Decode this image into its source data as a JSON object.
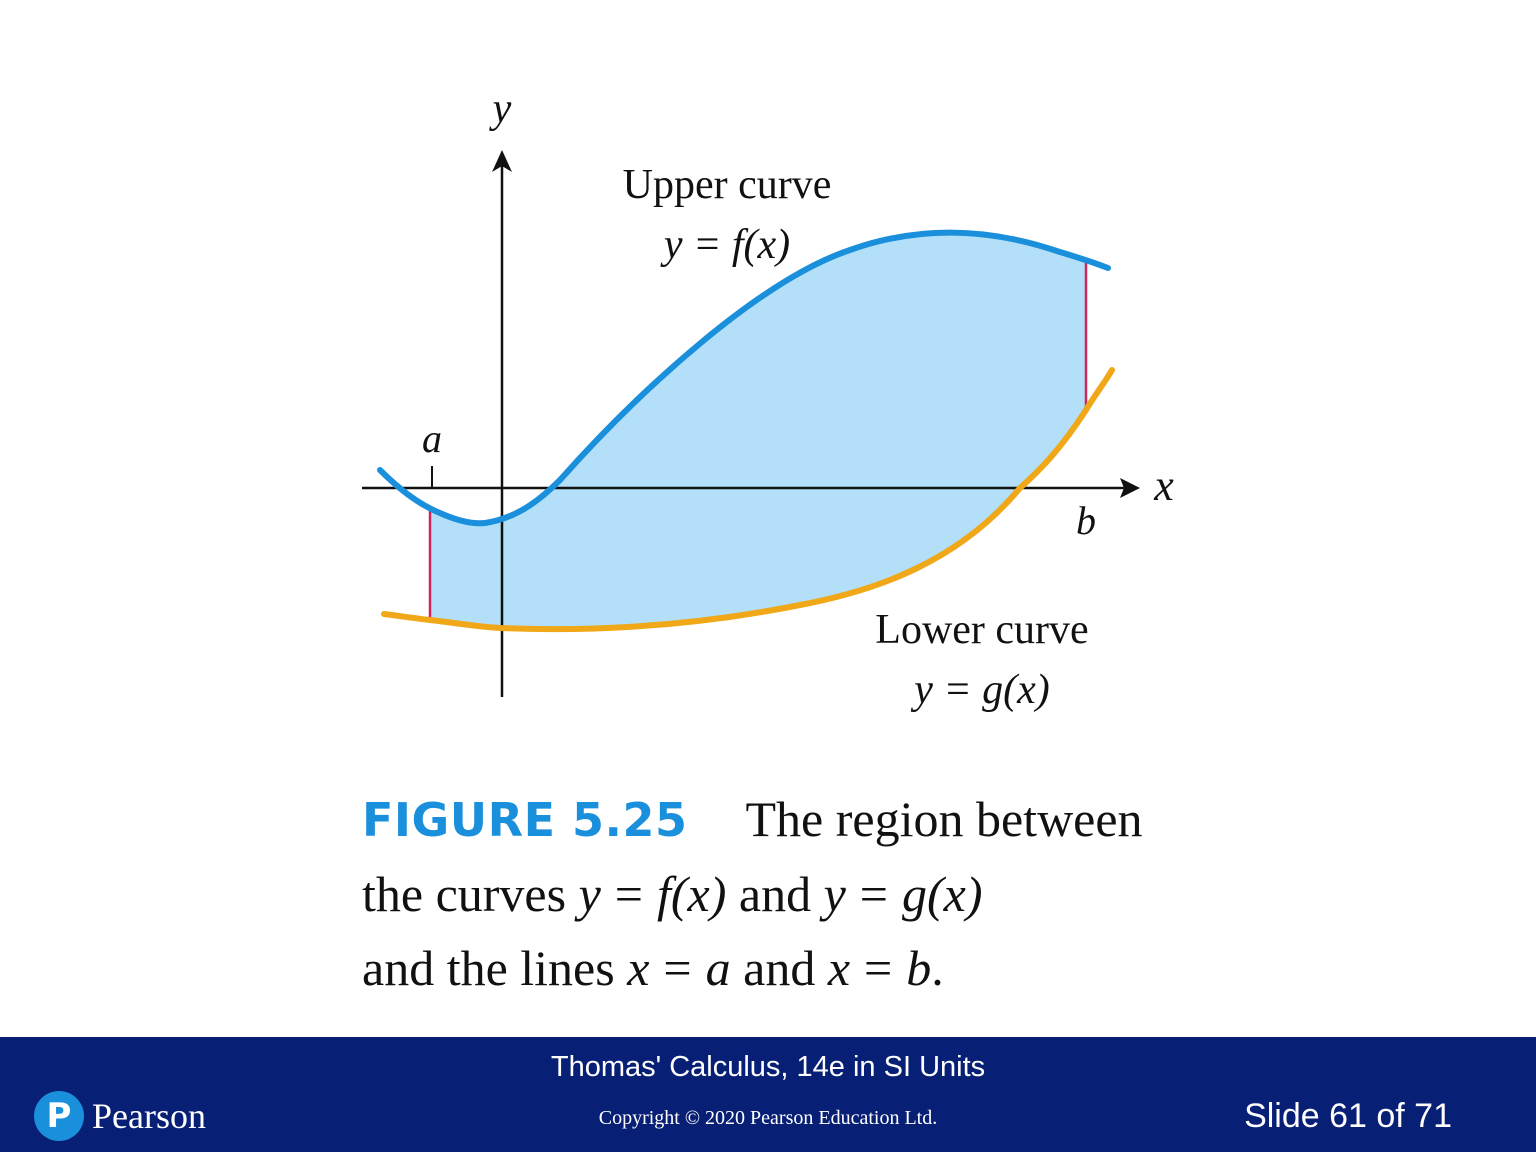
{
  "figure": {
    "axis_x_label": "x",
    "axis_y_label": "y",
    "point_a_label": "a",
    "point_b_label": "b",
    "upper_curve": {
      "title": "Upper curve",
      "equation": "y = f(x)"
    },
    "lower_curve": {
      "title": "Lower curve",
      "equation": "y = g(x)"
    },
    "colors": {
      "upper_curve": "#1a8fdc",
      "lower_curve": "#f0a818",
      "region": "#b3e0f8",
      "bounds": "#d0245c"
    }
  },
  "caption": {
    "label": "FIGURE 5.25",
    "line1": "The region between",
    "line2": {
      "text1": "the curves",
      "eq1_lhs": "y",
      "eq1_op": "=",
      "eq1_rhs": "f(x)",
      "join": "and",
      "eq2_lhs": "y",
      "eq2_op": "=",
      "eq2_rhs": "g(x)"
    },
    "line3": {
      "text1": "and the lines",
      "eq1_lhs": "x",
      "eq1_op": "=",
      "eq1_rhs": "a",
      "join": "and",
      "eq2_lhs": "x",
      "eq2_op": "=",
      "eq2_rhs": "b",
      "end": "."
    }
  },
  "footer": {
    "book_title": "Thomas' Calculus, 14e in SI Units",
    "copyright": "Copyright © 2020 Pearson Education Ltd.",
    "slide_counter": "Slide 61 of 71",
    "logo_mark": "P",
    "logo_text": "Pearson"
  }
}
